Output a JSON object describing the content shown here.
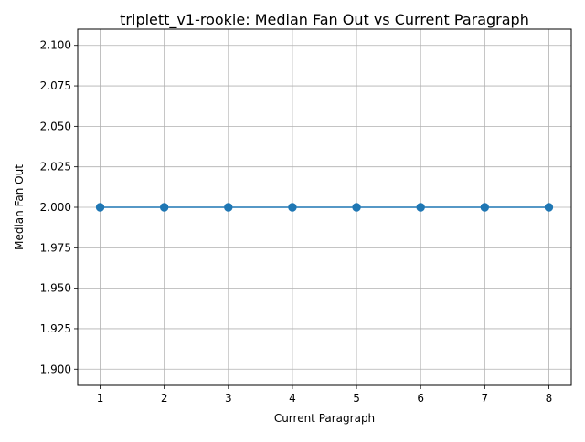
{
  "chart_data": {
    "type": "line",
    "title": "triplett_v1-rookie: Median Fan Out vs Current Paragraph",
    "xlabel": "Current Paragraph",
    "ylabel": "Median Fan Out",
    "x": [
      1,
      2,
      3,
      4,
      5,
      6,
      7,
      8
    ],
    "series": [
      {
        "values": [
          2.0,
          2.0,
          2.0,
          2.0,
          2.0,
          2.0,
          2.0,
          2.0
        ],
        "color": "#1f77b4",
        "marker": "circle"
      }
    ],
    "xlim": [
      0.65,
      8.35
    ],
    "ylim": [
      1.89,
      2.11
    ],
    "x_ticks": [
      1,
      2,
      3,
      4,
      5,
      6,
      7,
      8
    ],
    "y_ticks": [
      1.9,
      1.925,
      1.95,
      1.975,
      2.0,
      2.025,
      2.05,
      2.075,
      2.1
    ],
    "y_tick_labels": [
      "1.900",
      "1.925",
      "1.950",
      "1.975",
      "2.000",
      "2.025",
      "2.050",
      "2.075",
      "2.100"
    ],
    "grid": true,
    "legend": false
  }
}
